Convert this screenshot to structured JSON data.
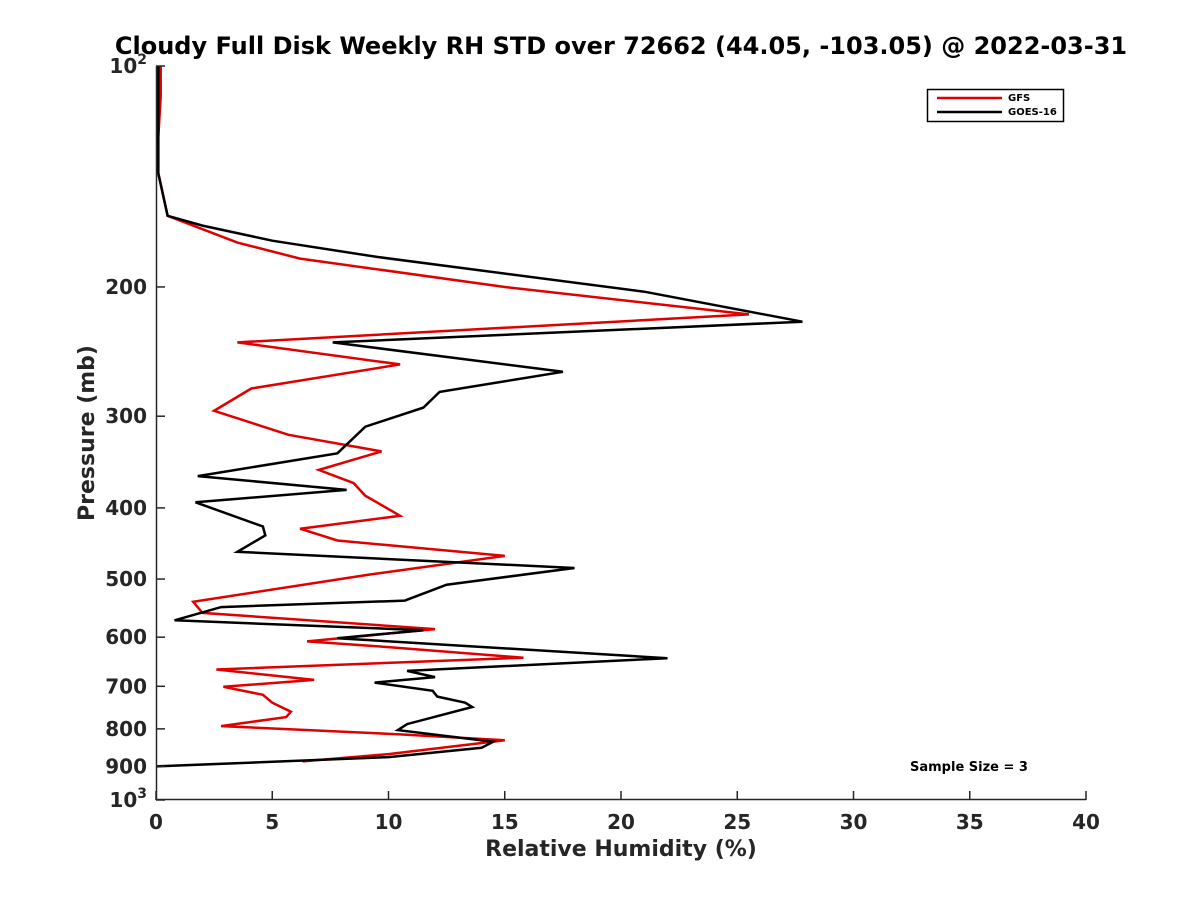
{
  "chart_data": {
    "type": "line",
    "title": "Cloudy Full Disk Weekly RH STD over 72662 (44.05, -103.05) @ 2022-03-31",
    "xlabel": "Relative Humidity (%)",
    "ylabel": "Pressure (mb)",
    "xlim": [
      0,
      40
    ],
    "ylim": [
      100,
      1000
    ],
    "y_scale": "log",
    "y_reversed": true,
    "grid": false,
    "legend_position": "top-right",
    "annotation": "Sample Size = 3",
    "x_ticks": [
      "0",
      "5",
      "10",
      "15",
      "20",
      "25",
      "30",
      "35",
      "40"
    ],
    "x_tick_values": [
      0,
      5,
      10,
      15,
      20,
      25,
      30,
      35,
      40
    ],
    "y_ticks": [
      {
        "value": 100,
        "base": "10",
        "exp": "2"
      },
      {
        "value": 200,
        "label": "200"
      },
      {
        "value": 300,
        "label": "300"
      },
      {
        "value": 400,
        "label": "400"
      },
      {
        "value": 500,
        "label": "500"
      },
      {
        "value": 600,
        "label": "600"
      },
      {
        "value": 700,
        "label": "700"
      },
      {
        "value": 800,
        "label": "800"
      },
      {
        "value": 900,
        "label": "900"
      },
      {
        "value": 1000,
        "base": "10",
        "exp": "3"
      }
    ],
    "series": [
      {
        "name": "GFS",
        "color": "#e00000",
        "points": [
          [
            0.2,
            100
          ],
          [
            0.2,
            110
          ],
          [
            0.1,
            125
          ],
          [
            0.1,
            140
          ],
          [
            0.5,
            160
          ],
          [
            3.5,
            174
          ],
          [
            6.2,
            183
          ],
          [
            15.0,
            200
          ],
          [
            25.5,
            218
          ],
          [
            3.5,
            238
          ],
          [
            10.5,
            255
          ],
          [
            4.1,
            275
          ],
          [
            2.5,
            295
          ],
          [
            5.7,
            318
          ],
          [
            9.7,
            335
          ],
          [
            7.0,
            355
          ],
          [
            8.5,
            370
          ],
          [
            9.0,
            385
          ],
          [
            10.5,
            410
          ],
          [
            6.2,
            427
          ],
          [
            7.8,
            443
          ],
          [
            15.0,
            465
          ],
          [
            9.2,
            493
          ],
          [
            1.6,
            537
          ],
          [
            2.0,
            556
          ],
          [
            12.0,
            585
          ],
          [
            6.5,
            608
          ],
          [
            10.0,
            619
          ],
          [
            15.8,
            640
          ],
          [
            2.6,
            664
          ],
          [
            6.8,
            686
          ],
          [
            2.9,
            701
          ],
          [
            4.6,
            719
          ],
          [
            5.0,
            737
          ],
          [
            5.8,
            758
          ],
          [
            5.6,
            771
          ],
          [
            2.8,
            793
          ],
          [
            10.5,
            814
          ],
          [
            15.0,
            829
          ],
          [
            10.0,
            866
          ],
          [
            6.3,
            886
          ]
        ]
      },
      {
        "name": "GOES-16",
        "color": "#000000",
        "points": [
          [
            0.1,
            100
          ],
          [
            0.1,
            110
          ],
          [
            0.1,
            125
          ],
          [
            0.1,
            140
          ],
          [
            0.5,
            160
          ],
          [
            2.0,
            165
          ],
          [
            5.0,
            173
          ],
          [
            9.5,
            182
          ],
          [
            21.0,
            203
          ],
          [
            27.8,
            223
          ],
          [
            7.6,
            238
          ],
          [
            17.5,
            261
          ],
          [
            12.2,
            278
          ],
          [
            11.5,
            292
          ],
          [
            9.0,
            310
          ],
          [
            7.8,
            337
          ],
          [
            1.8,
            362
          ],
          [
            8.2,
            378
          ],
          [
            1.7,
            393
          ],
          [
            4.6,
            424
          ],
          [
            4.7,
            436
          ],
          [
            3.5,
            459
          ],
          [
            18.0,
            483
          ],
          [
            12.5,
            509
          ],
          [
            10.7,
            535
          ],
          [
            2.8,
            546
          ],
          [
            0.8,
            569
          ],
          [
            11.5,
            587
          ],
          [
            7.8,
            602
          ],
          [
            22.0,
            641
          ],
          [
            10.8,
            667
          ],
          [
            12.0,
            680
          ],
          [
            9.4,
            692
          ],
          [
            11.9,
            710
          ],
          [
            12.1,
            723
          ],
          [
            13.3,
            737
          ],
          [
            13.6,
            747
          ],
          [
            10.8,
            788
          ],
          [
            10.4,
            803
          ],
          [
            14.5,
            833
          ],
          [
            14.0,
            849
          ],
          [
            10.0,
            874
          ],
          [
            0.0,
            900
          ]
        ]
      }
    ]
  }
}
